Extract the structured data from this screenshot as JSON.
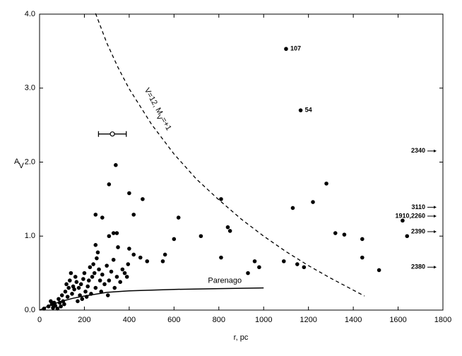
{
  "chart_data": {
    "type": "scatter",
    "xlabel": "r, pc",
    "ylabel": {
      "main": "A",
      "sub": "V"
    },
    "xlim": [
      0,
      1800
    ],
    "ylim": [
      0,
      4.0
    ],
    "xticks": [
      0,
      200,
      400,
      600,
      800,
      1000,
      1200,
      1400,
      1600,
      1800
    ],
    "yticks": [
      {
        "value": 0,
        "label": "0.0"
      },
      {
        "value": 1,
        "label": "1.0"
      },
      {
        "value": 2,
        "label": "2.0"
      },
      {
        "value": 3,
        "label": "3.0"
      },
      {
        "value": 4,
        "label": "4.0"
      }
    ],
    "color": "#000000",
    "x": [
      1100,
      1165,
      1280,
      1220,
      1130,
      1320,
      1360,
      1440,
      1440,
      1620,
      1640,
      1515,
      1090,
      1150,
      1180,
      960,
      980,
      930,
      810,
      840,
      850,
      810,
      720,
      620,
      600,
      560,
      550,
      480,
      460,
      400,
      420,
      340,
      310,
      250,
      280,
      310,
      330,
      345,
      400,
      420,
      450,
      20,
      40,
      50,
      55,
      60,
      65,
      70,
      80,
      85,
      90,
      95,
      100,
      105,
      110,
      115,
      120,
      125,
      130,
      135,
      140,
      145,
      150,
      155,
      160,
      165,
      170,
      175,
      180,
      185,
      190,
      195,
      200,
      205,
      210,
      215,
      220,
      225,
      230,
      235,
      240,
      245,
      250,
      255,
      260,
      265,
      270,
      275,
      280,
      290,
      300,
      305,
      310,
      320,
      330,
      335,
      345,
      350,
      360,
      370,
      380,
      390,
      395,
      250
    ],
    "values": [
      3.53,
      2.7,
      1.71,
      1.46,
      1.38,
      1.04,
      1.02,
      0.96,
      0.71,
      1.21,
      1.0,
      0.54,
      0.66,
      0.62,
      0.58,
      0.66,
      0.58,
      0.5,
      1.5,
      1.12,
      1.07,
      0.71,
      1.0,
      1.25,
      0.96,
      0.75,
      0.66,
      0.66,
      1.5,
      1.58,
      1.29,
      1.96,
      1.7,
      1.29,
      1.25,
      1.0,
      1.04,
      1.04,
      0.83,
      0.75,
      0.71,
      0.02,
      0.05,
      0.12,
      0.08,
      0.03,
      0.1,
      0.06,
      0.02,
      0.15,
      0.1,
      0.05,
      0.2,
      0.12,
      0.08,
      0.25,
      0.35,
      0.18,
      0.3,
      0.4,
      0.5,
      0.22,
      0.32,
      0.28,
      0.45,
      0.38,
      0.12,
      0.3,
      0.2,
      0.35,
      0.15,
      0.42,
      0.5,
      0.25,
      0.18,
      0.32,
      0.4,
      0.58,
      0.22,
      0.45,
      0.62,
      0.5,
      0.3,
      0.7,
      0.78,
      0.55,
      0.4,
      0.25,
      0.48,
      0.35,
      0.6,
      0.2,
      0.4,
      0.52,
      0.68,
      0.3,
      0.45,
      0.85,
      0.38,
      0.55,
      0.5,
      0.45,
      0.62,
      0.88
    ],
    "labels": [
      "107",
      "54",
      null,
      null,
      null,
      null,
      null,
      null,
      null,
      null,
      null,
      null,
      null,
      null,
      null,
      null,
      null,
      null,
      null,
      null,
      null,
      null,
      null,
      null,
      null,
      null,
      null,
      null,
      null,
      null,
      null,
      null,
      null,
      null,
      null,
      null,
      null,
      null,
      null,
      null,
      null,
      null,
      null,
      null,
      null,
      null,
      null,
      null,
      null,
      null,
      null,
      null,
      null,
      null,
      null,
      null,
      null,
      null,
      null,
      null,
      null,
      null,
      null,
      null,
      null,
      null,
      null,
      null,
      null,
      null,
      null,
      null,
      null,
      null,
      null,
      null,
      null,
      null,
      null,
      null,
      null,
      null,
      null,
      null,
      null,
      null,
      null,
      null,
      null,
      null,
      null,
      null,
      null,
      null,
      null,
      null,
      null,
      null,
      null,
      null,
      null,
      null,
      null,
      null
    ],
    "error_point": {
      "x": 325,
      "y": 2.38,
      "xerr": 62
    },
    "curves": [
      {
        "name": "V=12, M_V=+1",
        "label_parts": [
          "V=12, M",
          "V",
          "=+1"
        ],
        "dashed": true,
        "x": [
          250,
          300,
          350,
          400,
          500,
          600,
          700,
          800,
          900,
          1000,
          1100,
          1200,
          1300,
          1450
        ],
        "values": [
          4.01,
          3.61,
          3.28,
          2.99,
          2.51,
          2.11,
          1.77,
          1.49,
          1.23,
          1.0,
          0.79,
          0.6,
          0.43,
          0.19
        ]
      },
      {
        "name": "Parenago",
        "label_parts": [
          "Parenago"
        ],
        "dashed": false,
        "x": [
          0,
          50,
          100,
          150,
          200,
          300,
          400,
          600,
          800,
          1000
        ],
        "values": [
          0,
          0.07,
          0.12,
          0.16,
          0.19,
          0.24,
          0.26,
          0.28,
          0.29,
          0.3
        ]
      }
    ],
    "offscale": [
      {
        "label": "2340",
        "y": 2.15
      },
      {
        "label": "3110",
        "y": 1.39
      },
      {
        "label": "1910,2260",
        "y": 1.27
      },
      {
        "label": "2390",
        "y": 1.06
      },
      {
        "label": "2380",
        "y": 0.58
      }
    ]
  }
}
